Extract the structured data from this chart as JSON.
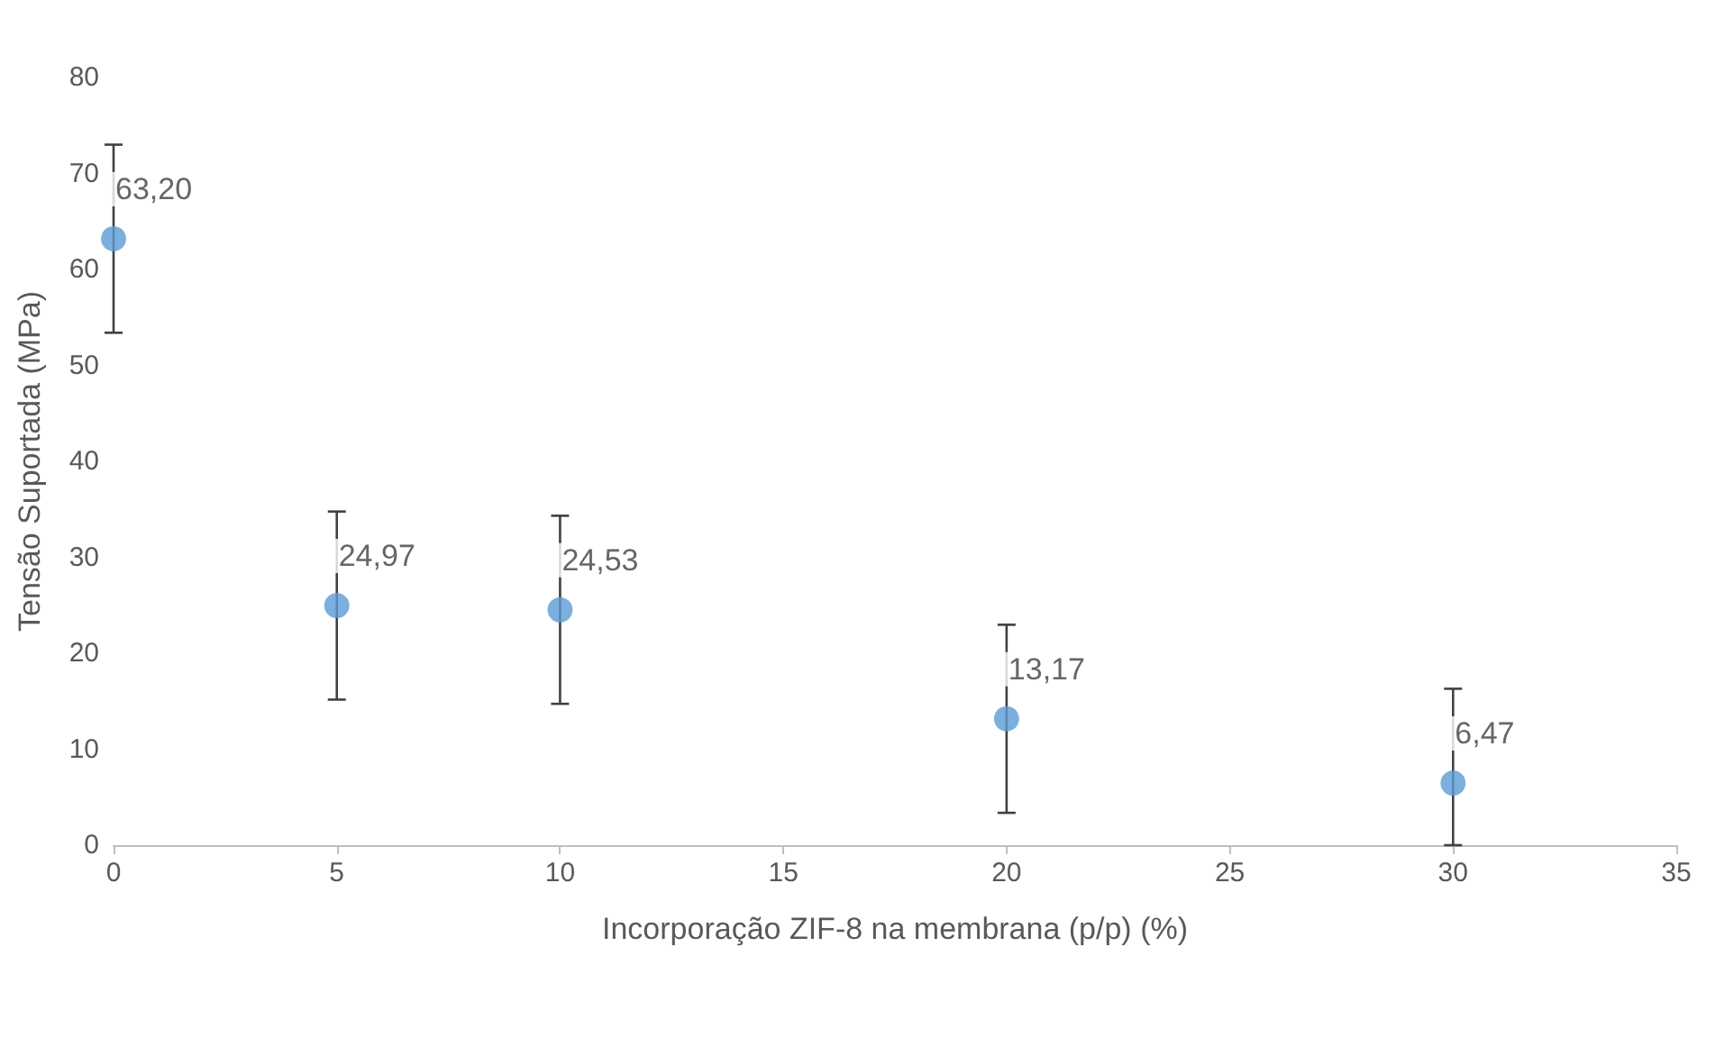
{
  "chart_data": {
    "type": "scatter",
    "xlabel": "Incorporação ZIF-8 na membrana (p/p) (%)",
    "ylabel": "Tensão Suportada (MPa)",
    "x": [
      0,
      5,
      10,
      20,
      30
    ],
    "series": [
      {
        "color": "#5b9bd5",
        "values": [
          63.2,
          24.97,
          24.53,
          13.17,
          6.47
        ],
        "errors": [
          9.8,
          9.8,
          9.8,
          9.8,
          [
            0,
            16.3
          ]
        ],
        "value_labels": [
          "63,20",
          "24,97",
          "24,53",
          "13,17",
          "6,47"
        ]
      }
    ],
    "xlim": [
      0,
      35
    ],
    "xticks": [
      0,
      5,
      10,
      15,
      20,
      25,
      30,
      35
    ],
    "ylim": [
      0,
      80
    ],
    "yticks": [
      0,
      10,
      20,
      30,
      40,
      50,
      60,
      70,
      80
    ],
    "grid": false,
    "marker": "circle"
  }
}
